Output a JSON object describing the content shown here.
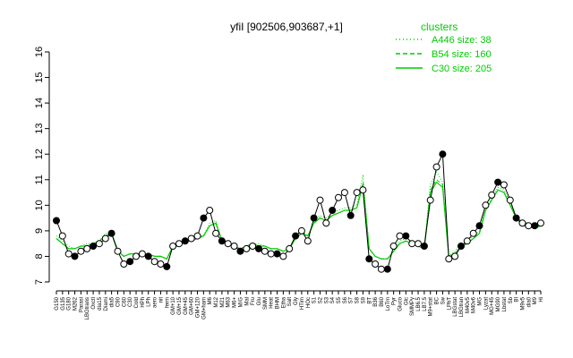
{
  "chart_data": {
    "type": "line",
    "title": "yfiI [902506,903687,+1]",
    "xlabel": "",
    "ylabel": "",
    "ylim": [
      7,
      16
    ],
    "yticks": [
      7,
      8,
      9,
      10,
      11,
      12,
      13,
      14,
      15,
      16
    ],
    "categories": [
      "G150",
      "G135",
      "G180",
      "M262",
      "Parasi",
      "LBGtrans",
      "Oxctl",
      "dia15",
      "Diami",
      "dia5",
      "C90",
      "C60",
      "C30",
      "Cold",
      "HPh",
      "LPh",
      "aero",
      "nit",
      "ferm",
      "GM+10",
      "GM+15",
      "GM+45",
      "GM+60",
      "GM+120",
      "GM+ham",
      "M6",
      "M12",
      "M21",
      "M63",
      "M6+",
      "M/G",
      "Mal",
      "Fru",
      "Glu",
      "SMM",
      "Heat",
      "BHM",
      "Etha",
      "Salt",
      "Gly",
      "HTim",
      "HOc",
      "S1",
      "S2",
      "S3",
      "S4",
      "S5",
      "S6",
      "S7",
      "S8",
      "S9",
      "BT",
      "B36",
      "B60",
      "LoTm",
      "Pyr",
      "Gluco",
      "Glc",
      "SMMPy",
      "LB6.5",
      "LB7.5",
      "M9+stat",
      "BC",
      "Sw",
      "LPhT",
      "LBGstat",
      "LBGtran",
      "M40v5",
      "M40v6",
      "MG",
      "Lyzat",
      "MG+45",
      "MG90",
      "Lbstat",
      "Sb",
      "BI",
      "M9v5",
      "dia0",
      "M9",
      "Hi"
    ],
    "series": [
      {
        "name": "A446 size: 38",
        "style": "dotted",
        "values": [
          8.8,
          8.6,
          8.4,
          8.3,
          8.4,
          8.5,
          8.5,
          8.6,
          8.9,
          8.9,
          8.3,
          8.0,
          8.1,
          8.1,
          8.1,
          8.1,
          8.0,
          8.0,
          7.9,
          8.4,
          8.5,
          8.6,
          8.7,
          8.8,
          8.8,
          9.3,
          9.4,
          8.6,
          8.5,
          8.4,
          8.3,
          8.4,
          8.5,
          8.5,
          8.4,
          8.3,
          8.3,
          8.2,
          8.3,
          8.8,
          9.0,
          8.8,
          9.4,
          9.6,
          9.5,
          9.7,
          9.8,
          9.9,
          9.9,
          10.0,
          11.2,
          8.3,
          8.0,
          7.9,
          7.9,
          8.2,
          8.6,
          8.7,
          8.6,
          8.4,
          8.4,
          10.8,
          11.3,
          10.9,
          8.0,
          8.2,
          8.5,
          8.6,
          8.8,
          9.0,
          9.9,
          10.3,
          10.7,
          10.6,
          10.1,
          9.6,
          9.3,
          9.3,
          9.2,
          9.3
        ]
      },
      {
        "name": "B54 size: 160",
        "style": "dashed",
        "values": [
          8.7,
          8.5,
          8.3,
          8.3,
          8.4,
          8.4,
          8.5,
          8.6,
          8.8,
          8.9,
          8.2,
          8.0,
          8.1,
          8.1,
          8.1,
          8.1,
          8.0,
          8.0,
          7.9,
          8.4,
          8.4,
          8.6,
          8.6,
          8.7,
          8.8,
          9.2,
          9.3,
          8.6,
          8.5,
          8.4,
          8.3,
          8.4,
          8.5,
          8.4,
          8.4,
          8.3,
          8.3,
          8.2,
          8.3,
          8.7,
          8.9,
          8.8,
          9.3,
          9.5,
          9.4,
          9.6,
          9.7,
          9.8,
          9.8,
          9.9,
          10.9,
          8.3,
          8.0,
          7.9,
          7.9,
          8.2,
          8.5,
          8.6,
          8.5,
          8.4,
          8.3,
          10.6,
          11.0,
          10.8,
          8.0,
          8.1,
          8.4,
          8.5,
          8.7,
          8.9,
          9.8,
          10.2,
          10.6,
          10.5,
          10.0,
          9.5,
          9.2,
          9.2,
          9.1,
          9.2
        ]
      },
      {
        "name": "C30 size: 205",
        "style": "solid",
        "values": [
          8.7,
          8.5,
          8.3,
          8.3,
          8.4,
          8.4,
          8.5,
          8.6,
          8.8,
          8.9,
          8.2,
          8.0,
          8.1,
          8.1,
          8.1,
          8.1,
          8.0,
          8.0,
          7.9,
          8.4,
          8.4,
          8.6,
          8.6,
          8.7,
          8.8,
          9.2,
          9.3,
          8.6,
          8.5,
          8.4,
          8.3,
          8.4,
          8.5,
          8.4,
          8.4,
          8.3,
          8.3,
          8.2,
          8.3,
          8.7,
          8.9,
          8.8,
          9.3,
          9.5,
          9.4,
          9.6,
          9.7,
          9.8,
          9.8,
          9.9,
          10.8,
          8.3,
          8.0,
          7.9,
          7.9,
          8.2,
          8.5,
          8.6,
          8.5,
          8.4,
          8.3,
          10.5,
          10.9,
          10.7,
          8.0,
          8.1,
          8.4,
          8.5,
          8.7,
          8.9,
          9.8,
          10.2,
          10.6,
          10.5,
          10.0,
          9.5,
          9.2,
          9.2,
          9.1,
          9.2
        ]
      },
      {
        "name": "observed",
        "style": "black",
        "values": [
          9.4,
          8.8,
          8.1,
          8.0,
          8.2,
          8.3,
          8.4,
          8.5,
          8.7,
          8.9,
          8.2,
          7.7,
          7.8,
          8.0,
          8.1,
          8.0,
          7.8,
          7.7,
          7.6,
          8.4,
          8.5,
          8.6,
          8.7,
          8.8,
          9.5,
          9.8,
          8.9,
          8.6,
          8.5,
          8.4,
          8.2,
          8.3,
          8.4,
          8.3,
          8.2,
          8.1,
          8.1,
          8.0,
          8.3,
          8.8,
          9.0,
          8.6,
          9.5,
          10.2,
          9.3,
          9.8,
          10.3,
          10.5,
          9.6,
          10.5,
          10.6,
          7.9,
          7.7,
          7.5,
          7.5,
          8.4,
          8.8,
          8.8,
          8.5,
          8.5,
          8.4,
          10.2,
          11.5,
          12.0,
          7.9,
          8.0,
          8.4,
          8.6,
          8.9,
          9.2,
          10.0,
          10.4,
          10.9,
          10.8,
          10.2,
          9.5,
          9.3,
          9.2,
          9.2,
          9.3
        ]
      }
    ],
    "legend": {
      "title": "clusters",
      "position": "top-right",
      "entries": [
        {
          "label": "A446 size: 38",
          "style": "dotted"
        },
        {
          "label": "B54 size: 160",
          "style": "dashed"
        },
        {
          "label": "C30 size: 205",
          "style": "solid"
        }
      ]
    },
    "colors": {
      "cluster": "#00cc00",
      "observed": "#000000",
      "point_fill": "#ffffff"
    },
    "grid": false
  }
}
